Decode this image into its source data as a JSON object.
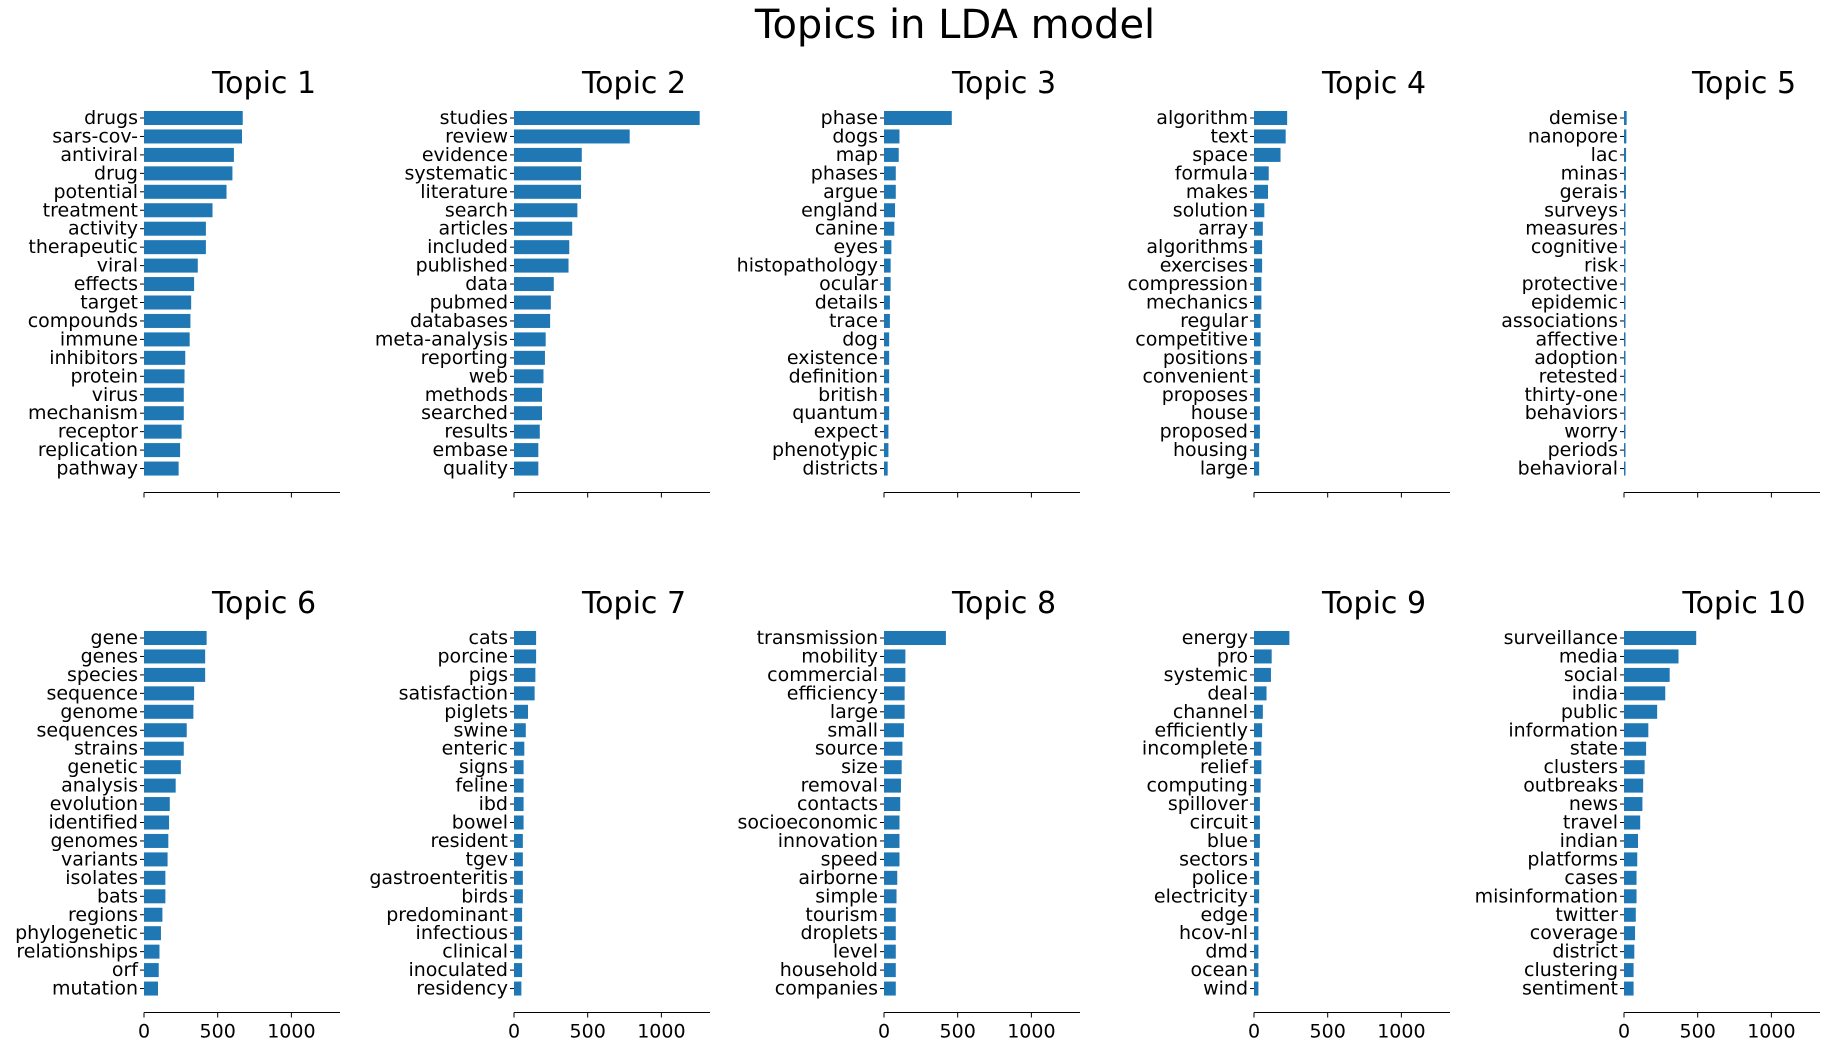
{
  "chart_data": {
    "type": "bar",
    "orientation": "horizontal",
    "suptitle": "Topics in LDA model",
    "xlim": [
      0,
      1330
    ],
    "xticks": [
      0,
      500,
      1000
    ],
    "xtick_labels_shown_on_bottom_row_only": true,
    "grid": false,
    "bar_color": "#1f77b4",
    "panels": [
      {
        "title": "Topic 1",
        "categories": [
          "drugs",
          "sars-cov-",
          "antiviral",
          "drug",
          "potential",
          "treatment",
          "activity",
          "therapeutic",
          "viral",
          "effects",
          "target",
          "compounds",
          "immune",
          "inhibitors",
          "protein",
          "virus",
          "mechanism",
          "receptor",
          "replication",
          "pathway"
        ],
        "values": [
          670,
          665,
          610,
          600,
          560,
          465,
          420,
          420,
          365,
          340,
          320,
          315,
          310,
          280,
          275,
          270,
          270,
          255,
          245,
          235
        ]
      },
      {
        "title": "Topic 2",
        "categories": [
          "studies",
          "review",
          "evidence",
          "systematic",
          "literature",
          "search",
          "articles",
          "included",
          "published",
          "data",
          "pubmed",
          "databases",
          "meta-analysis",
          "reporting",
          "web",
          "methods",
          "searched",
          "results",
          "embase",
          "quality"
        ],
        "values": [
          1260,
          785,
          460,
          455,
          455,
          430,
          395,
          375,
          370,
          270,
          250,
          245,
          215,
          210,
          200,
          190,
          190,
          175,
          165,
          165
        ]
      },
      {
        "title": "Topic 3",
        "categories": [
          "phase",
          "dogs",
          "map",
          "phases",
          "argue",
          "england",
          "canine",
          "eyes",
          "histopathology",
          "ocular",
          "details",
          "trace",
          "dog",
          "existence",
          "definition",
          "british",
          "quantum",
          "expect",
          "phenotypic",
          "districts"
        ],
        "values": [
          460,
          105,
          100,
          80,
          80,
          75,
          70,
          50,
          45,
          45,
          40,
          40,
          35,
          35,
          35,
          35,
          35,
          30,
          30,
          25
        ]
      },
      {
        "title": "Topic 4",
        "categories": [
          "algorithm",
          "text",
          "space",
          "formula",
          "makes",
          "solution",
          "array",
          "algorithms",
          "exercises",
          "compression",
          "mechanics",
          "regular",
          "competitive",
          "positions",
          "convenient",
          "proposes",
          "house",
          "proposed",
          "housing",
          "large"
        ],
        "values": [
          225,
          215,
          180,
          100,
          95,
          70,
          60,
          55,
          55,
          50,
          50,
          45,
          45,
          45,
          40,
          40,
          40,
          40,
          35,
          35
        ]
      },
      {
        "title": "Topic 5",
        "categories": [
          "demise",
          "nanopore",
          "lac",
          "minas",
          "gerais",
          "surveys",
          "measures",
          "cognitive",
          "risk",
          "protective",
          "epidemic",
          "associations",
          "affective",
          "adoption",
          "retested",
          "thirty-one",
          "behaviors",
          "worry",
          "periods",
          "behavioral"
        ],
        "values": [
          18,
          16,
          14,
          13,
          13,
          3,
          3,
          3,
          3,
          2,
          2,
          2,
          2,
          2,
          2,
          2,
          2,
          2,
          2,
          2
        ]
      },
      {
        "title": "Topic 6",
        "categories": [
          "gene",
          "genes",
          "species",
          "sequence",
          "genome",
          "sequences",
          "strains",
          "genetic",
          "analysis",
          "evolution",
          "identified",
          "genomes",
          "variants",
          "isolates",
          "bats",
          "regions",
          "phylogenetic",
          "relationships",
          "orf",
          "mutation"
        ],
        "values": [
          425,
          415,
          415,
          340,
          335,
          290,
          270,
          250,
          215,
          175,
          170,
          165,
          160,
          145,
          145,
          125,
          115,
          105,
          100,
          95
        ]
      },
      {
        "title": "Topic 7",
        "categories": [
          "cats",
          "porcine",
          "pigs",
          "satisfaction",
          "piglets",
          "swine",
          "enteric",
          "signs",
          "feline",
          "ibd",
          "bowel",
          "resident",
          "tgev",
          "gastroenteritis",
          "birds",
          "predominant",
          "infectious",
          "clinical",
          "inoculated",
          "residency"
        ],
        "values": [
          150,
          150,
          145,
          140,
          95,
          80,
          70,
          65,
          65,
          65,
          65,
          60,
          60,
          60,
          60,
          55,
          55,
          55,
          55,
          50
        ]
      },
      {
        "title": "Topic 8",
        "categories": [
          "transmission",
          "mobility",
          "commercial",
          "efficiency",
          "large",
          "small",
          "source",
          "size",
          "removal",
          "contacts",
          "socioeconomic",
          "innovation",
          "speed",
          "airborne",
          "simple",
          "tourism",
          "droplets",
          "level",
          "household",
          "companies"
        ],
        "values": [
          420,
          145,
          145,
          140,
          140,
          135,
          125,
          120,
          115,
          110,
          105,
          105,
          105,
          90,
          85,
          80,
          80,
          80,
          80,
          80
        ]
      },
      {
        "title": "Topic 9",
        "categories": [
          "energy",
          "pro",
          "systemic",
          "deal",
          "channel",
          "efficiently",
          "incomplete",
          "relief",
          "computing",
          "spillover",
          "circuit",
          "blue",
          "sectors",
          "police",
          "electricity",
          "edge",
          "hcov-nl",
          "dmd",
          "ocean",
          "wind"
        ],
        "values": [
          240,
          120,
          115,
          85,
          60,
          55,
          50,
          50,
          45,
          40,
          40,
          40,
          35,
          35,
          35,
          30,
          30,
          30,
          30,
          30
        ]
      },
      {
        "title": "Topic 10",
        "categories": [
          "surveillance",
          "media",
          "social",
          "india",
          "public",
          "information",
          "state",
          "clusters",
          "outbreaks",
          "news",
          "travel",
          "indian",
          "platforms",
          "cases",
          "misinformation",
          "twitter",
          "coverage",
          "district",
          "clustering",
          "sentiment"
        ],
        "values": [
          490,
          370,
          310,
          280,
          225,
          165,
          150,
          140,
          130,
          125,
          110,
          95,
          90,
          85,
          85,
          80,
          75,
          70,
          65,
          65
        ]
      }
    ]
  }
}
